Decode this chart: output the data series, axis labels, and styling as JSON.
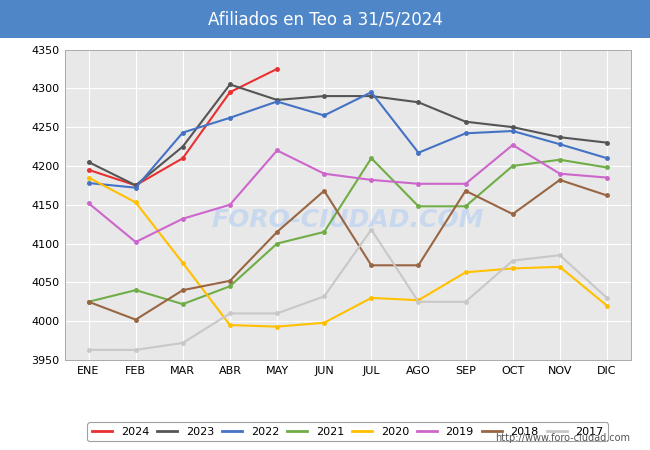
{
  "title": "Afiliados en Teo a 31/5/2024",
  "title_color": "white",
  "title_bg_color": "#4e86c8",
  "months": [
    "ENE",
    "FEB",
    "MAR",
    "ABR",
    "MAY",
    "JUN",
    "JUL",
    "AGO",
    "SEP",
    "OCT",
    "NOV",
    "DIC"
  ],
  "ylim": [
    3950,
    4350
  ],
  "yticks": [
    3950,
    4000,
    4050,
    4100,
    4150,
    4200,
    4250,
    4300,
    4350
  ],
  "series": {
    "2024": {
      "color": "#e83030",
      "linewidth": 1.5,
      "data": [
        4195,
        4175,
        4210,
        4295,
        4325,
        null,
        null,
        null,
        null,
        null,
        null,
        null
      ]
    },
    "2023": {
      "color": "#555555",
      "linewidth": 1.5,
      "data": [
        4205,
        4175,
        4225,
        4305,
        4285,
        4290,
        4290,
        4282,
        4257,
        4250,
        4237,
        4230
      ]
    },
    "2022": {
      "color": "#4472c4",
      "linewidth": 1.5,
      "data": [
        4178,
        4172,
        4243,
        4262,
        4283,
        4265,
        4295,
        4217,
        4242,
        4245,
        4228,
        4210
      ]
    },
    "2021": {
      "color": "#70ad47",
      "linewidth": 1.5,
      "data": [
        4025,
        4040,
        4022,
        4045,
        4100,
        4115,
        4210,
        4148,
        4148,
        4200,
        4208,
        4198
      ]
    },
    "2020": {
      "color": "#ffc000",
      "linewidth": 1.5,
      "data": [
        4185,
        4153,
        4075,
        3995,
        3993,
        3998,
        4030,
        4027,
        4063,
        4068,
        4070,
        4020
      ]
    },
    "2019": {
      "color": "#cc66cc",
      "linewidth": 1.5,
      "data": [
        4152,
        4102,
        4132,
        4150,
        4220,
        4190,
        4182,
        4177,
        4177,
        4227,
        4190,
        4185
      ]
    },
    "2018": {
      "color": "#996644",
      "linewidth": 1.5,
      "data": [
        4025,
        4002,
        4040,
        4052,
        4115,
        4168,
        4072,
        4072,
        4168,
        4138,
        4182,
        4162
      ]
    },
    "2017": {
      "color": "#c8c8c8",
      "linewidth": 1.5,
      "data": [
        3963,
        3963,
        3972,
        4010,
        4010,
        4032,
        4118,
        4025,
        4025,
        4078,
        4085,
        4030
      ]
    }
  },
  "plot_bg_color": "#e8e8e8",
  "watermark_color": "#c8d8ee",
  "footer_url": "http://www.foro-ciudad.com",
  "grid_color": "#ffffff",
  "outer_bg_color": "#ffffff"
}
